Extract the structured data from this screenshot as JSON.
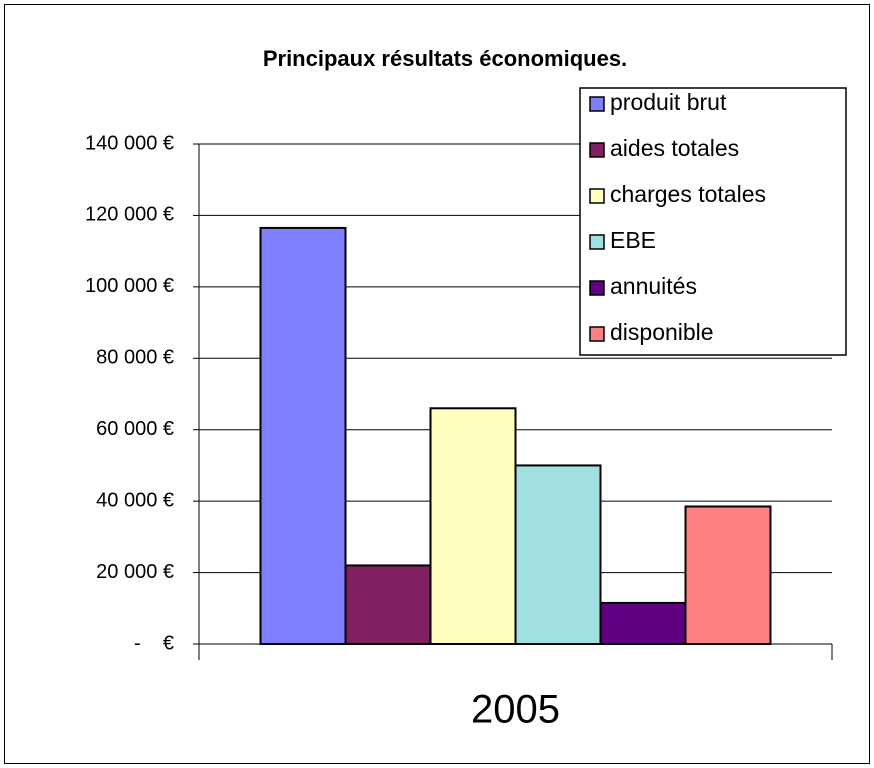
{
  "chart_data": {
    "type": "bar",
    "title": "Principaux résultats économiques.",
    "categories": [
      "2005"
    ],
    "series": [
      {
        "name": "produit brut",
        "color": "#8080ff",
        "values": [
          116500
        ]
      },
      {
        "name": "aides totales",
        "color": "#802060",
        "values": [
          22000
        ]
      },
      {
        "name": "charges totales",
        "color": "#ffffc0",
        "values": [
          66000
        ]
      },
      {
        "name": "EBE",
        "color": "#a0e0e0",
        "values": [
          50000
        ]
      },
      {
        "name": "annuités",
        "color": "#600080",
        "values": [
          11500
        ]
      },
      {
        "name": "disponible",
        "color": "#ff8080",
        "values": [
          38500
        ]
      }
    ],
    "ylim": [
      0,
      140000
    ],
    "yticks": [
      {
        "value": 0,
        "label": "-    €"
      },
      {
        "value": 20000,
        "label": "20 000 €"
      },
      {
        "value": 40000,
        "label": "40 000 €"
      },
      {
        "value": 60000,
        "label": "60 000 €"
      },
      {
        "value": 80000,
        "label": "80 000 €"
      },
      {
        "value": 100000,
        "label": "100 000 €"
      },
      {
        "value": 120000,
        "label": "120 000 €"
      },
      {
        "value": 140000,
        "label": "140 000 €"
      }
    ],
    "grid": true,
    "legend": "upper right"
  }
}
